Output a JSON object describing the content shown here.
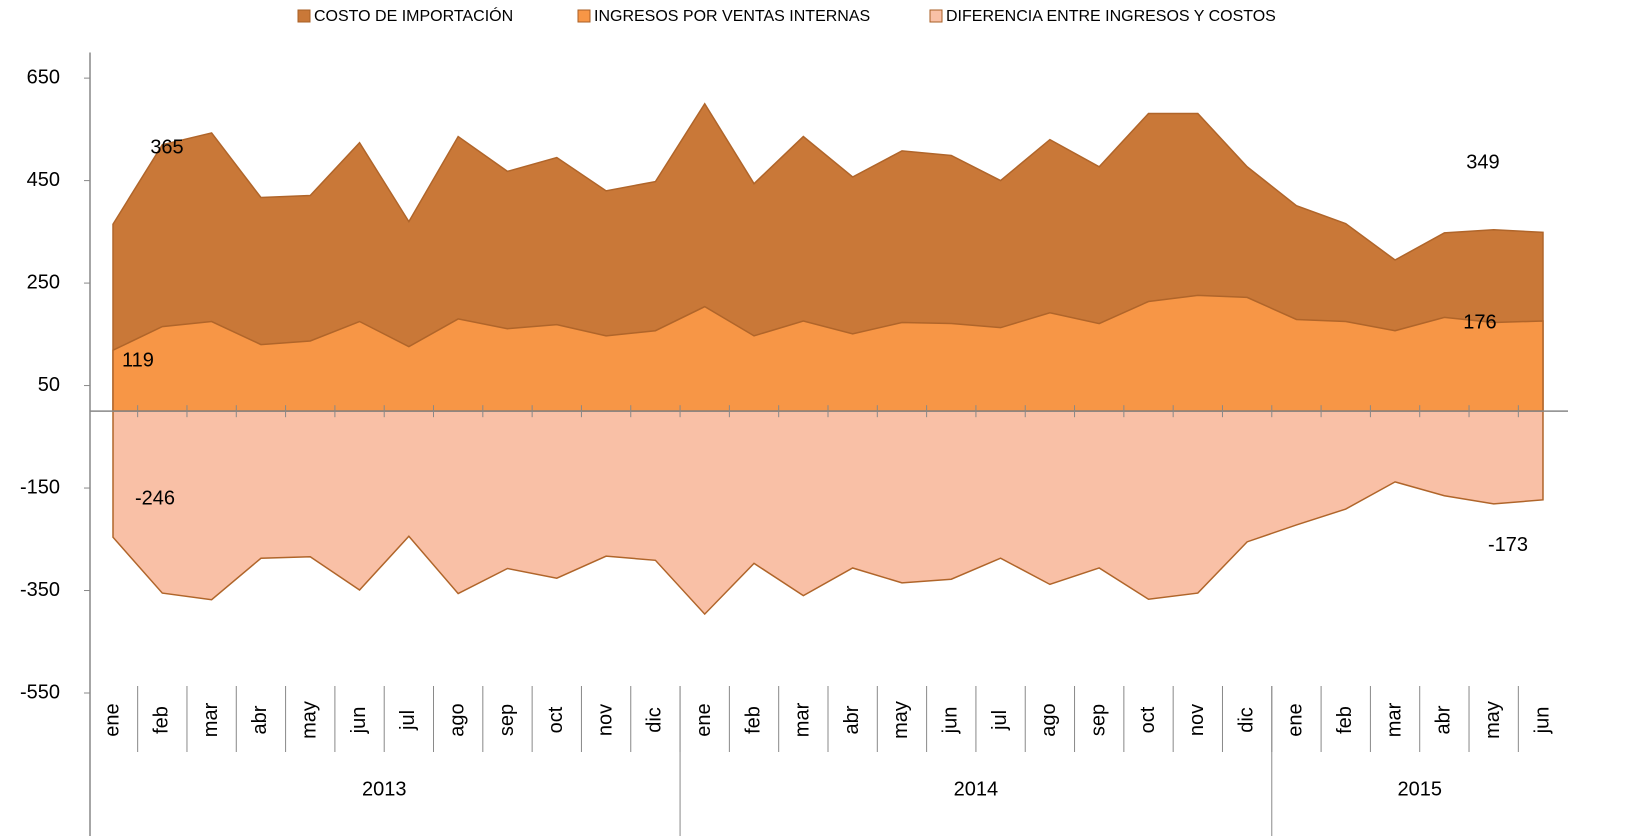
{
  "chart_data": {
    "type": "area",
    "categories": [
      "ene",
      "feb",
      "mar",
      "abr",
      "may",
      "jun",
      "jul",
      "ago",
      "sep",
      "oct",
      "nov",
      "dic",
      "ene",
      "feb",
      "mar",
      "abr",
      "may",
      "jun",
      "jul",
      "ago",
      "sep",
      "oct",
      "nov",
      "dic",
      "ene",
      "feb",
      "mar",
      "abr",
      "may",
      "jun"
    ],
    "years": [
      "2013",
      "2014",
      "2015"
    ],
    "series": [
      {
        "name": "COSTO DE IMPORTACIÓN",
        "color": "#c97838",
        "values": [
          365,
          520,
          543,
          417,
          421,
          524,
          370,
          536,
          468,
          495,
          430,
          448,
          600,
          444,
          536,
          457,
          508,
          499,
          450,
          530,
          477,
          581,
          581,
          477,
          401,
          366,
          295,
          348,
          354,
          349
        ]
      },
      {
        "name": "INGRESOS POR VENTAS INTERNAS",
        "color": "#f79646",
        "values": [
          119,
          165,
          175,
          130,
          137,
          175,
          126,
          180,
          161,
          169,
          147,
          157,
          204,
          147,
          176,
          151,
          173,
          171,
          163,
          192,
          171,
          214,
          226,
          222,
          179,
          175,
          157,
          183,
          173,
          176
        ]
      },
      {
        "name": "DIFERENCIA ENTRE INGRESOS Y COSTOS",
        "color": "#f9c0a6",
        "values": [
          -246,
          -355,
          -368,
          -287,
          -284,
          -349,
          -244,
          -356,
          -307,
          -326,
          -283,
          -291,
          -396,
          -297,
          -360,
          -306,
          -335,
          -328,
          -287,
          -338,
          -306,
          -367,
          -355,
          -255,
          -222,
          -191,
          -138,
          -165,
          -181,
          -173
        ]
      }
    ],
    "ylim": [
      -550,
      700
    ],
    "yticks": [
      650,
      450,
      250,
      50,
      -150,
      -350,
      -550
    ],
    "legend": "top"
  }
}
